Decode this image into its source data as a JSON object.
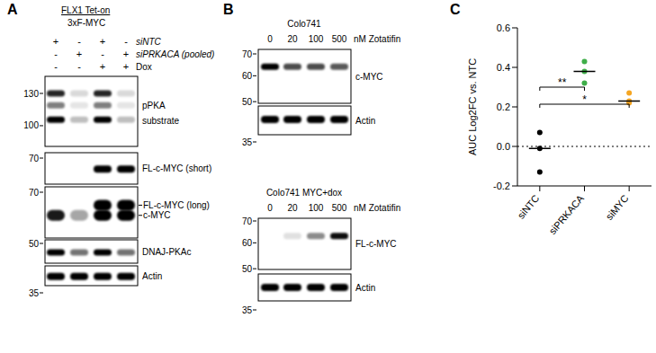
{
  "panel_a": {
    "label": "A",
    "title": [
      "FLX1 Tet-on",
      "3xF-MYC"
    ],
    "conditions": [
      {
        "name": "siNTC",
        "signs": [
          "+",
          "-",
          "+",
          "-"
        ]
      },
      {
        "name": "siPRKACA (pooled)",
        "signs": [
          "-",
          "+",
          "-",
          "+"
        ]
      },
      {
        "name": "Dox",
        "signs": [
          "-",
          "-",
          "+",
          "+"
        ]
      }
    ],
    "blots": [
      {
        "markers": [
          130,
          100
        ],
        "label": [
          "pPKA",
          "substrate"
        ],
        "bands": [
          {
            "kda": 130,
            "intensities": [
              0.85,
              0.15,
              0.85,
              0.15
            ]
          },
          {
            "kda": 118,
            "intensities": [
              0.5,
              0.1,
              0.5,
              0.1
            ]
          },
          {
            "kda": 105,
            "intensities": [
              1,
              0.25,
              1,
              0.25
            ]
          }
        ]
      },
      {
        "markers": [
          70
        ],
        "label": "FL-c-MYC (short)",
        "bands": [
          {
            "kda": 64,
            "intensities": [
              0,
              0,
              1,
              1
            ]
          }
        ]
      },
      {
        "markers": [
          70
        ],
        "bands": [
          {
            "kda": 63,
            "intensities": [
              0,
              0,
              1,
              1
            ],
            "label": "FL-c-MYC (long)"
          },
          {
            "kda": 58,
            "intensities": [
              0.9,
              0.35,
              1,
              1
            ],
            "label": "c-MYC"
          }
        ]
      },
      {
        "markers": [
          50
        ],
        "label": "DNAJ-PKAc",
        "bands": [
          {
            "kda": 46.5,
            "intensities": [
              1,
              0.55,
              1,
              0.55
            ]
          }
        ]
      },
      {
        "markers": [
          35
        ],
        "label": "Actin",
        "bands": [
          {
            "kda": 40,
            "intensities": [
              1,
              1,
              1,
              1
            ]
          }
        ]
      }
    ]
  },
  "panel_b": {
    "label": "B",
    "groups": [
      {
        "title": "Colo741",
        "lanes": [
          0,
          20,
          100,
          500
        ],
        "lane_unit": "nM Zotatifin",
        "blots": [
          {
            "markers": [
              70,
              60,
              50
            ],
            "label": "c-MYC",
            "bands": [
              {
                "kda": 64,
                "intensities": [
                  1,
                  0.7,
                  0.7,
                  0.65
                ]
              }
            ]
          },
          {
            "markers": [
              35
            ],
            "label": "Actin",
            "bands": [
              {
                "kda": 41,
                "intensities": [
                  1,
                  1,
                  1,
                  1
                ]
              }
            ]
          }
        ]
      },
      {
        "title": "Colo741 MYC+dox",
        "lanes": [
          0,
          20,
          100,
          500
        ],
        "lane_unit": "nM Zotatifin",
        "blots": [
          {
            "markers": [
              70,
              60,
              50
            ],
            "label": "FL-c-MYC",
            "bands": [
              {
                "kda": 63,
                "intensities": [
                  0,
                  0.12,
                  0.45,
                  0.95
                ]
              }
            ]
          },
          {
            "markers": [
              35
            ],
            "label": "Actin",
            "bands": [
              {
                "kda": 41,
                "intensities": [
                  1,
                  1,
                  1,
                  1
                ]
              }
            ]
          }
        ]
      }
    ]
  },
  "chart_data": {
    "type": "scatter",
    "panel_label": "C",
    "categories": [
      "siNTC",
      "siPRKACA",
      "siMYC"
    ],
    "y_label": "AUC Log2FC vs. NTC",
    "ylim": [
      -0.2,
      0.6
    ],
    "yticks": [
      -0.2,
      {
        "value": 0,
        "label": "0.0"
      },
      0.2,
      0.4,
      0.6
    ],
    "points": [
      [
        0.07,
        -0.01,
        -0.13
      ],
      [
        0.43,
        0.38,
        0.32
      ],
      [
        0.27,
        0.22,
        0.23
      ]
    ],
    "medians": [
      -0.01,
      0.38,
      0.23
    ],
    "colors": [
      "#000000",
      "#3fae49",
      "#f5a623"
    ],
    "reference_lines": [
      {
        "y": 0,
        "line_style": "dotted"
      }
    ],
    "annotations": [
      {
        "from": "siNTC",
        "to": "siPRKACA",
        "label": "**"
      },
      {
        "from": "siNTC",
        "to": "siMYC",
        "label": "*"
      }
    ]
  }
}
